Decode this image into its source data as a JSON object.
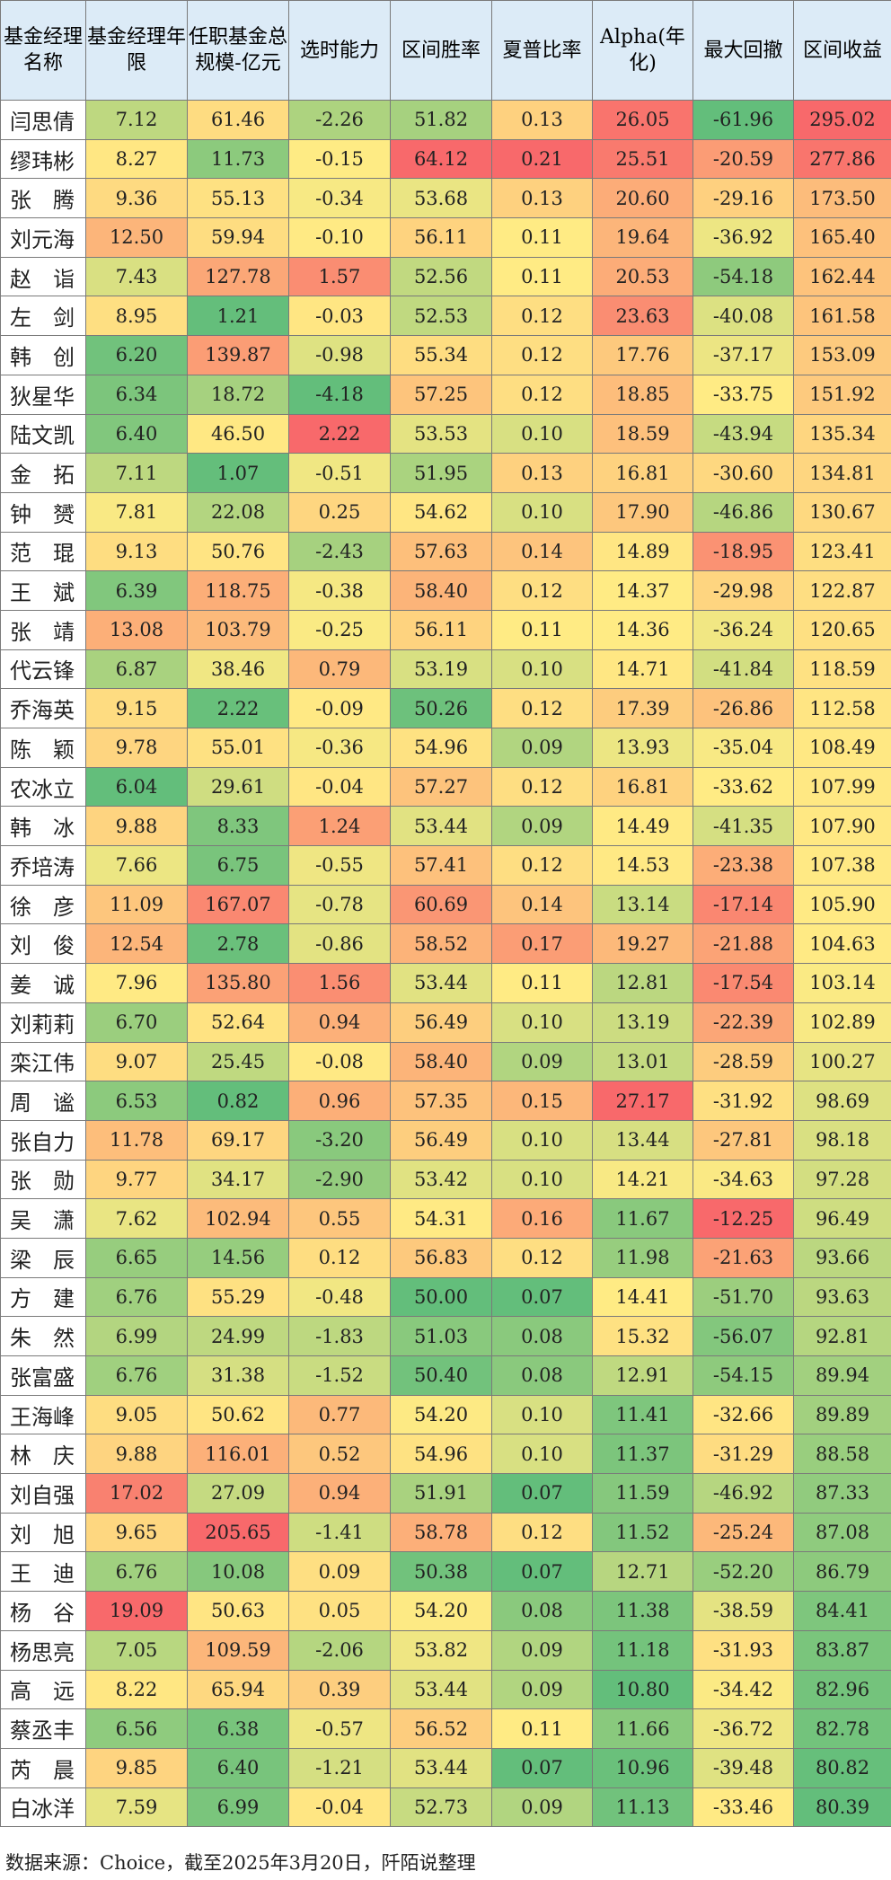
{
  "chart_data": {
    "type": "table",
    "columns": [
      "基金经理名称",
      "基金经理年限",
      "任职基金总规模-亿元",
      "选时能力",
      "区间胜率",
      "夏普比率",
      "Alpha(年化)",
      "最大回撤",
      "区间收益"
    ],
    "rows": [
      [
        "闫思倩",
        "7.12",
        "61.46",
        "-2.26",
        "51.82",
        "0.13",
        "26.05",
        "-61.96",
        "295.02"
      ],
      [
        "缪玮彬",
        "8.27",
        "11.73",
        "-0.15",
        "64.12",
        "0.21",
        "25.51",
        "-20.59",
        "277.86"
      ],
      [
        "张　腾",
        "9.36",
        "55.13",
        "-0.34",
        "53.68",
        "0.13",
        "20.60",
        "-29.16",
        "173.50"
      ],
      [
        "刘元海",
        "12.50",
        "59.94",
        "-0.10",
        "56.11",
        "0.11",
        "19.64",
        "-36.92",
        "165.40"
      ],
      [
        "赵　诣",
        "7.43",
        "127.78",
        "1.57",
        "52.56",
        "0.11",
        "20.53",
        "-54.18",
        "162.44"
      ],
      [
        "左　剑",
        "8.95",
        "1.21",
        "-0.03",
        "52.53",
        "0.12",
        "23.63",
        "-40.08",
        "161.58"
      ],
      [
        "韩　创",
        "6.20",
        "139.87",
        "-0.98",
        "55.34",
        "0.12",
        "17.76",
        "-37.17",
        "153.09"
      ],
      [
        "狄星华",
        "6.34",
        "18.72",
        "-4.18",
        "57.25",
        "0.12",
        "18.85",
        "-33.75",
        "151.92"
      ],
      [
        "陆文凯",
        "6.40",
        "46.50",
        "2.22",
        "53.53",
        "0.10",
        "18.59",
        "-43.94",
        "135.34"
      ],
      [
        "金　拓",
        "7.11",
        "1.07",
        "-0.51",
        "51.95",
        "0.13",
        "16.81",
        "-30.60",
        "134.81"
      ],
      [
        "钟　赟",
        "7.81",
        "22.08",
        "0.25",
        "54.62",
        "0.10",
        "17.90",
        "-46.86",
        "130.67"
      ],
      [
        "范　琨",
        "9.13",
        "50.76",
        "-2.43",
        "57.63",
        "0.14",
        "14.89",
        "-18.95",
        "123.41"
      ],
      [
        "王　斌",
        "6.39",
        "118.75",
        "-0.38",
        "58.40",
        "0.12",
        "14.37",
        "-29.98",
        "122.87"
      ],
      [
        "张　靖",
        "13.08",
        "103.79",
        "-0.25",
        "56.11",
        "0.11",
        "14.36",
        "-36.24",
        "120.65"
      ],
      [
        "代云锋",
        "6.87",
        "38.46",
        "0.79",
        "53.19",
        "0.10",
        "14.71",
        "-41.84",
        "118.59"
      ],
      [
        "乔海英",
        "9.15",
        "2.22",
        "-0.09",
        "50.26",
        "0.12",
        "17.39",
        "-26.86",
        "112.58"
      ],
      [
        "陈　颖",
        "9.78",
        "55.01",
        "-0.36",
        "54.96",
        "0.09",
        "13.93",
        "-35.04",
        "108.49"
      ],
      [
        "农冰立",
        "6.04",
        "29.61",
        "-0.04",
        "57.27",
        "0.12",
        "16.81",
        "-33.62",
        "107.99"
      ],
      [
        "韩　冰",
        "9.88",
        "8.33",
        "1.24",
        "53.44",
        "0.09",
        "14.49",
        "-41.35",
        "107.90"
      ],
      [
        "乔培涛",
        "7.66",
        "6.75",
        "-0.55",
        "57.41",
        "0.12",
        "14.53",
        "-23.38",
        "107.38"
      ],
      [
        "徐　彦",
        "11.09",
        "167.07",
        "-0.78",
        "60.69",
        "0.14",
        "13.14",
        "-17.14",
        "105.90"
      ],
      [
        "刘　俊",
        "12.54",
        "2.78",
        "-0.86",
        "58.52",
        "0.17",
        "19.27",
        "-21.88",
        "104.63"
      ],
      [
        "姜　诚",
        "7.96",
        "135.80",
        "1.56",
        "53.44",
        "0.11",
        "12.81",
        "-17.54",
        "103.14"
      ],
      [
        "刘莉莉",
        "6.70",
        "52.64",
        "0.94",
        "56.49",
        "0.10",
        "13.19",
        "-22.39",
        "102.89"
      ],
      [
        "栾江伟",
        "9.07",
        "25.45",
        "-0.08",
        "58.40",
        "0.09",
        "13.01",
        "-28.59",
        "100.27"
      ],
      [
        "周　谧",
        "6.53",
        "0.82",
        "0.96",
        "57.35",
        "0.15",
        "27.17",
        "-31.92",
        "98.69"
      ],
      [
        "张自力",
        "11.78",
        "69.17",
        "-3.20",
        "56.49",
        "0.10",
        "13.44",
        "-27.81",
        "98.18"
      ],
      [
        "张　勋",
        "9.77",
        "34.17",
        "-2.90",
        "53.42",
        "0.10",
        "14.21",
        "-34.63",
        "97.28"
      ],
      [
        "吴　潇",
        "7.62",
        "102.94",
        "0.55",
        "54.31",
        "0.16",
        "11.67",
        "-12.25",
        "96.49"
      ],
      [
        "梁　辰",
        "6.65",
        "14.56",
        "0.12",
        "56.83",
        "0.12",
        "11.98",
        "-21.63",
        "93.66"
      ],
      [
        "方　建",
        "6.76",
        "55.29",
        "-0.48",
        "50.00",
        "0.07",
        "14.41",
        "-51.70",
        "93.63"
      ],
      [
        "朱　然",
        "6.99",
        "24.99",
        "-1.83",
        "51.03",
        "0.08",
        "15.32",
        "-56.07",
        "92.81"
      ],
      [
        "张富盛",
        "6.76",
        "31.38",
        "-1.52",
        "50.40",
        "0.08",
        "12.91",
        "-54.15",
        "89.94"
      ],
      [
        "王海峰",
        "9.05",
        "50.62",
        "0.77",
        "54.20",
        "0.10",
        "11.41",
        "-32.66",
        "89.89"
      ],
      [
        "林　庆",
        "9.88",
        "116.01",
        "0.52",
        "54.96",
        "0.10",
        "11.37",
        "-31.29",
        "88.58"
      ],
      [
        "刘自强",
        "17.02",
        "27.09",
        "0.94",
        "51.91",
        "0.07",
        "11.59",
        "-46.92",
        "87.33"
      ],
      [
        "刘　旭",
        "9.65",
        "205.65",
        "-1.41",
        "58.78",
        "0.12",
        "11.52",
        "-25.24",
        "87.08"
      ],
      [
        "王　迪",
        "6.76",
        "10.08",
        "0.09",
        "50.38",
        "0.07",
        "12.71",
        "-52.20",
        "86.79"
      ],
      [
        "杨　谷",
        "19.09",
        "50.63",
        "0.05",
        "54.20",
        "0.08",
        "11.38",
        "-38.59",
        "84.41"
      ],
      [
        "杨思亮",
        "7.05",
        "109.59",
        "-2.06",
        "53.82",
        "0.09",
        "11.18",
        "-31.93",
        "83.87"
      ],
      [
        "高　远",
        "8.22",
        "65.94",
        "0.39",
        "53.44",
        "0.09",
        "10.80",
        "-34.42",
        "82.96"
      ],
      [
        "蔡丞丰",
        "6.56",
        "6.38",
        "-0.57",
        "56.52",
        "0.11",
        "11.66",
        "-36.72",
        "82.78"
      ],
      [
        "芮　晨",
        "9.85",
        "6.40",
        "-1.21",
        "53.44",
        "0.07",
        "10.96",
        "-39.48",
        "80.82"
      ],
      [
        "白冰洋",
        "7.59",
        "6.99",
        "-0.04",
        "52.73",
        "0.09",
        "11.13",
        "-33.46",
        "80.39"
      ]
    ],
    "color_scale": {
      "low": "#63be7b",
      "mid": "#ffeb84",
      "high": "#f8696b"
    }
  },
  "footer": "数据来源：Choice，截至2025年3月20日，阡陌说整理"
}
